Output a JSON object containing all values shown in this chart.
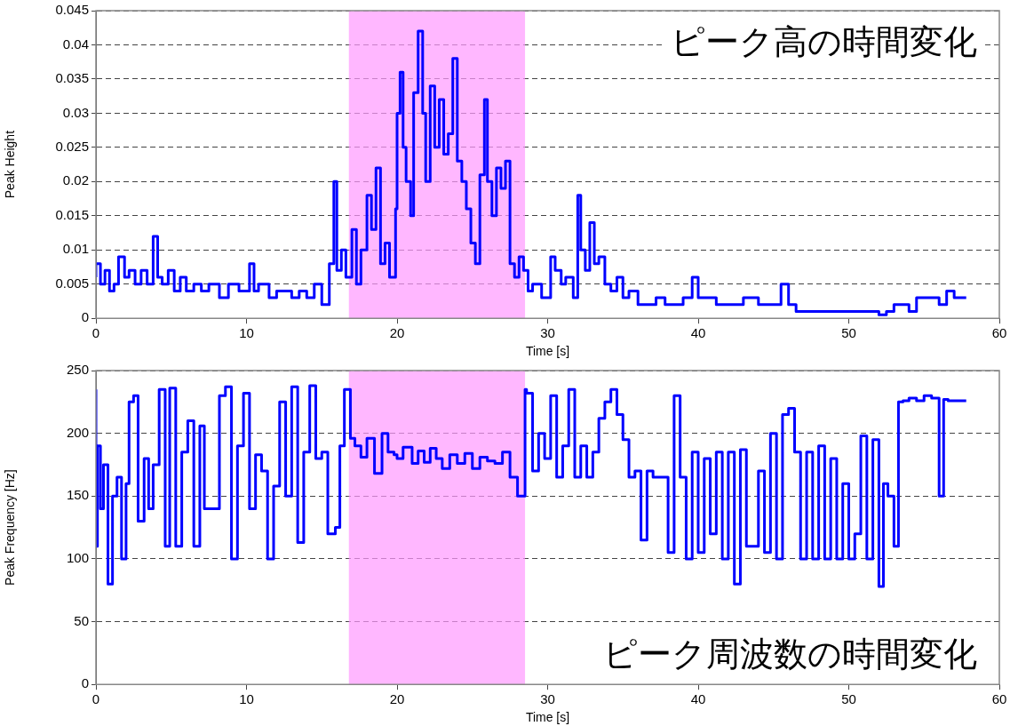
{
  "chart_data": [
    {
      "type": "step",
      "xlabel": "Time [s]",
      "ylabel": "Peak Height",
      "annotations": [
        "ピーク高の時間変化"
      ],
      "xlim": [
        0,
        60
      ],
      "xticks": [
        0,
        10,
        20,
        30,
        40,
        50,
        60
      ],
      "ylim": [
        0,
        0.045
      ],
      "yticks": [
        0,
        0.005,
        0.01,
        0.015,
        0.02,
        0.025,
        0.03,
        0.035,
        0.04,
        0.045
      ],
      "grid": "y",
      "bands": [
        {
          "axis": "x",
          "from": 16.8,
          "to": 28.5,
          "color": "#ff99ff"
        }
      ],
      "series": [
        {
          "color": "#0000ff",
          "x": [
            0,
            0.3,
            0.6,
            0.9,
            1.2,
            1.5,
            1.9,
            2.2,
            2.6,
            3.0,
            3.4,
            3.8,
            4.1,
            4.4,
            4.8,
            5.2,
            5.6,
            6.0,
            6.5,
            7.0,
            7.5,
            8.2,
            8.8,
            9.5,
            10.2,
            10.5,
            10.8,
            11.5,
            12.0,
            12.5,
            13.0,
            13.5,
            14.0,
            14.5,
            15.0,
            15.5,
            15.8,
            16.0,
            16.3,
            16.6,
            17.0,
            17.3,
            17.6,
            18.0,
            18.3,
            18.6,
            18.9,
            19.2,
            19.5,
            19.9,
            20.0,
            20.2,
            20.4,
            20.6,
            20.9,
            21.1,
            21.4,
            21.7,
            21.9,
            22.2,
            22.5,
            22.8,
            23.1,
            23.4,
            23.7,
            24.0,
            24.3,
            24.6,
            24.9,
            25.2,
            25.5,
            25.8,
            26.0,
            26.3,
            26.6,
            26.9,
            27.2,
            27.5,
            27.8,
            28.1,
            28.4,
            28.7,
            29.0,
            29.6,
            30.2,
            30.5,
            30.9,
            31.2,
            31.7,
            32.0,
            32.2,
            32.5,
            32.8,
            33.1,
            33.4,
            33.8,
            34.2,
            34.6,
            35.0,
            35.4,
            36.0,
            36.6,
            37.2,
            37.8,
            38.4,
            39.0,
            39.6,
            40.0,
            40.4,
            41.2,
            42.0,
            43.0,
            44.0,
            44.6,
            45.5,
            46.0,
            46.5,
            47.2,
            48.0,
            49.0,
            50.0,
            51.0,
            52.0,
            52.5,
            53.0,
            54.0,
            54.5,
            55.0,
            56.0,
            56.5,
            57.0,
            57.8
          ],
          "values": [
            0.006,
            0.008,
            0.005,
            0.007,
            0.004,
            0.005,
            0.009,
            0.006,
            0.007,
            0.005,
            0.007,
            0.005,
            0.012,
            0.006,
            0.005,
            0.007,
            0.004,
            0.006,
            0.004,
            0.005,
            0.004,
            0.005,
            0.003,
            0.005,
            0.004,
            0.008,
            0.004,
            0.005,
            0.003,
            0.004,
            0.004,
            0.003,
            0.004,
            0.003,
            0.005,
            0.002,
            0.008,
            0.02,
            0.007,
            0.01,
            0.006,
            0.013,
            0.005,
            0.01,
            0.018,
            0.013,
            0.022,
            0.008,
            0.011,
            0.006,
            0.016,
            0.03,
            0.036,
            0.025,
            0.02,
            0.015,
            0.033,
            0.042,
            0.03,
            0.02,
            0.034,
            0.025,
            0.032,
            0.024,
            0.027,
            0.038,
            0.023,
            0.02,
            0.016,
            0.011,
            0.008,
            0.021,
            0.032,
            0.02,
            0.015,
            0.022,
            0.019,
            0.023,
            0.008,
            0.006,
            0.009,
            0.007,
            0.004,
            0.005,
            0.003,
            0.009,
            0.007,
            0.005,
            0.006,
            0.003,
            0.018,
            0.01,
            0.007,
            0.014,
            0.008,
            0.009,
            0.005,
            0.004,
            0.006,
            0.003,
            0.004,
            0.002,
            0.002,
            0.003,
            0.002,
            0.002,
            0.003,
            0.006,
            0.003,
            0.003,
            0.002,
            0.002,
            0.003,
            0.002,
            0.002,
            0.005,
            0.002,
            0.001,
            0.001,
            0.001,
            0.001,
            0.001,
            0.001,
            0.0005,
            0.001,
            0.002,
            0.001,
            0.003,
            0.003,
            0.002,
            0.004,
            0.003
          ]
        }
      ]
    },
    {
      "type": "step",
      "xlabel": "Time [s]",
      "ylabel": "Peak Frequency [Hz]",
      "annotations": [
        "ピーク周波数の時間変化"
      ],
      "xlim": [
        0,
        60
      ],
      "xticks": [
        0,
        10,
        20,
        30,
        40,
        50,
        60
      ],
      "ylim": [
        0,
        250
      ],
      "yticks": [
        0,
        50,
        100,
        150,
        200,
        250
      ],
      "grid": "y",
      "bands": [
        {
          "axis": "x",
          "from": 16.8,
          "to": 28.5,
          "color": "#ff99ff"
        }
      ],
      "series": [
        {
          "color": "#0000ff",
          "x": [
            0,
            0.1,
            0.3,
            0.5,
            0.8,
            1.1,
            1.4,
            1.7,
            2.0,
            2.2,
            2.5,
            2.8,
            3.2,
            3.5,
            3.8,
            4.2,
            4.6,
            4.9,
            5.3,
            5.7,
            6.1,
            6.5,
            6.9,
            7.2,
            7.6,
            8.2,
            8.6,
            9.0,
            9.4,
            9.8,
            10.2,
            10.6,
            11.0,
            11.4,
            11.8,
            12.2,
            12.6,
            13.0,
            13.4,
            13.8,
            14.2,
            14.6,
            15.0,
            15.4,
            15.9,
            16.2,
            16.5,
            16.9,
            17.2,
            17.6,
            18.0,
            18.5,
            19.0,
            19.4,
            19.8,
            20.0,
            20.4,
            21.0,
            21.4,
            21.8,
            22.2,
            22.6,
            23.0,
            23.5,
            24.0,
            24.5,
            25.0,
            25.5,
            26.0,
            26.5,
            27.0,
            27.5,
            28.0,
            28.5,
            28.6,
            29.0,
            29.4,
            29.8,
            30.2,
            30.6,
            31.0,
            31.4,
            31.8,
            32.2,
            32.6,
            33.0,
            33.4,
            33.8,
            34.2,
            34.6,
            35.0,
            35.4,
            35.8,
            36.2,
            36.6,
            37.0,
            37.6,
            38.0,
            38.4,
            38.8,
            39.2,
            39.6,
            40.0,
            40.4,
            40.8,
            41.2,
            41.6,
            42.0,
            42.4,
            42.8,
            43.2,
            43.6,
            44.0,
            44.4,
            44.8,
            45.2,
            45.6,
            46.0,
            46.4,
            46.8,
            47.2,
            47.6,
            48.0,
            48.4,
            48.8,
            49.2,
            49.6,
            50.0,
            50.4,
            50.8,
            51.2,
            51.6,
            52.0,
            52.3,
            52.6,
            53.0,
            53.3,
            53.6,
            54.0,
            54.5,
            55.0,
            55.5,
            56.0,
            56.3,
            56.6,
            57.0,
            57.8
          ],
          "values": [
            235,
            110,
            190,
            140,
            175,
            80,
            150,
            165,
            100,
            160,
            225,
            230,
            130,
            180,
            140,
            175,
            235,
            110,
            236,
            110,
            185,
            210,
            110,
            206,
            140,
            140,
            230,
            237,
            100,
            190,
            232,
            140,
            183,
            170,
            100,
            158,
            225,
            150,
            237,
            113,
            185,
            238,
            180,
            185,
            120,
            125,
            190,
            235,
            196,
            190,
            181,
            196,
            168,
            200,
            185,
            183,
            180,
            189,
            176,
            186,
            177,
            188,
            180,
            172,
            183,
            176,
            184,
            172,
            181,
            178,
            176,
            185,
            165,
            150,
            235,
            232,
            170,
            200,
            180,
            230,
            165,
            190,
            235,
            165,
            190,
            165,
            185,
            212,
            225,
            235,
            215,
            195,
            165,
            170,
            115,
            170,
            165,
            165,
            105,
            230,
            165,
            100,
            185,
            105,
            180,
            120,
            185,
            100,
            185,
            80,
            187,
            110,
            110,
            170,
            105,
            200,
            100,
            215,
            220,
            185,
            100,
            185,
            100,
            190,
            100,
            180,
            100,
            160,
            100,
            120,
            198,
            100,
            195,
            78,
            160,
            150,
            110,
            225,
            226,
            228,
            226,
            230,
            228,
            150,
            227,
            226,
            226
          ]
        }
      ]
    }
  ]
}
